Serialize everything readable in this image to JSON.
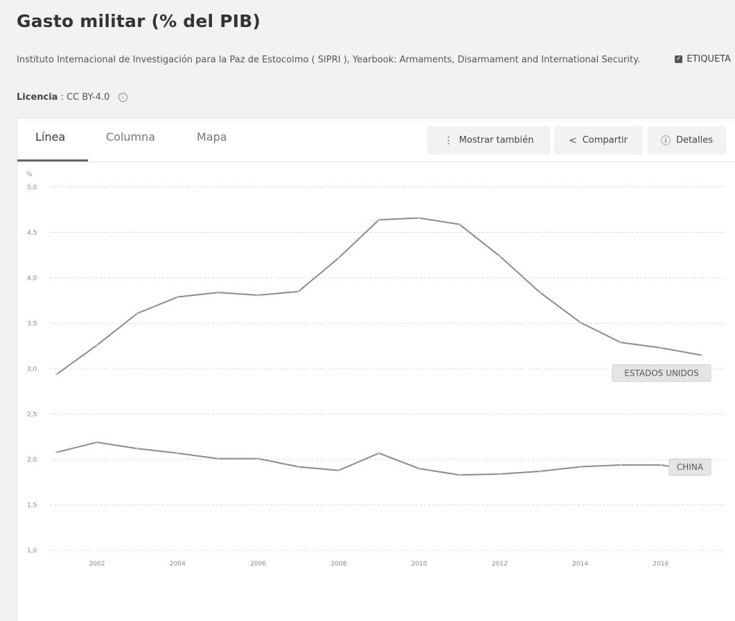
{
  "page": {
    "title": "Gasto militar (% del PIB)",
    "source": "Instituto Internacional de Investigación para la Paz de Estocolmo ( SIPRI ), Yearbook: Armaments, Disarmament and International Security.",
    "license_label": "Licencia",
    "license_value": ": CC BY-4.0"
  },
  "tabs": [
    "Línea",
    "Columna",
    "Mapa"
  ],
  "toolbar": {
    "show_also": "Mostrar también",
    "share": "Compartir",
    "details": "Detalles"
  },
  "legend": {
    "checkbox_label": "ETIQUETA",
    "checked": true
  },
  "chart_data": {
    "type": "line",
    "ylabel": "%",
    "ylim": [
      1.0,
      5.0
    ],
    "yticks": [
      "1,0",
      "1,5",
      "2,0",
      "2,5",
      "3,0",
      "3,5",
      "4,0",
      "4,5",
      "5,0"
    ],
    "xticks": [
      2002,
      2004,
      2006,
      2008,
      2010,
      2012,
      2014,
      2016
    ],
    "xlim": [
      2001,
      2017
    ],
    "grid": true,
    "x": [
      2001,
      2002,
      2003,
      2004,
      2005,
      2006,
      2007,
      2008,
      2009,
      2010,
      2011,
      2012,
      2013,
      2014,
      2015,
      2016,
      2017
    ],
    "series": [
      {
        "name": "ESTADOS UNIDOS",
        "values": [
          2.94,
          3.26,
          3.61,
          3.79,
          3.84,
          3.81,
          3.85,
          4.22,
          4.64,
          4.66,
          4.59,
          4.24,
          3.84,
          3.51,
          3.29,
          3.23,
          3.15
        ]
      },
      {
        "name": "CHINA",
        "values": [
          2.08,
          2.19,
          2.12,
          2.07,
          2.01,
          2.01,
          1.92,
          1.88,
          2.07,
          1.9,
          1.83,
          1.84,
          1.87,
          1.92,
          1.94,
          1.94,
          1.87
        ]
      }
    ],
    "line_color": "#8a8a8a"
  }
}
